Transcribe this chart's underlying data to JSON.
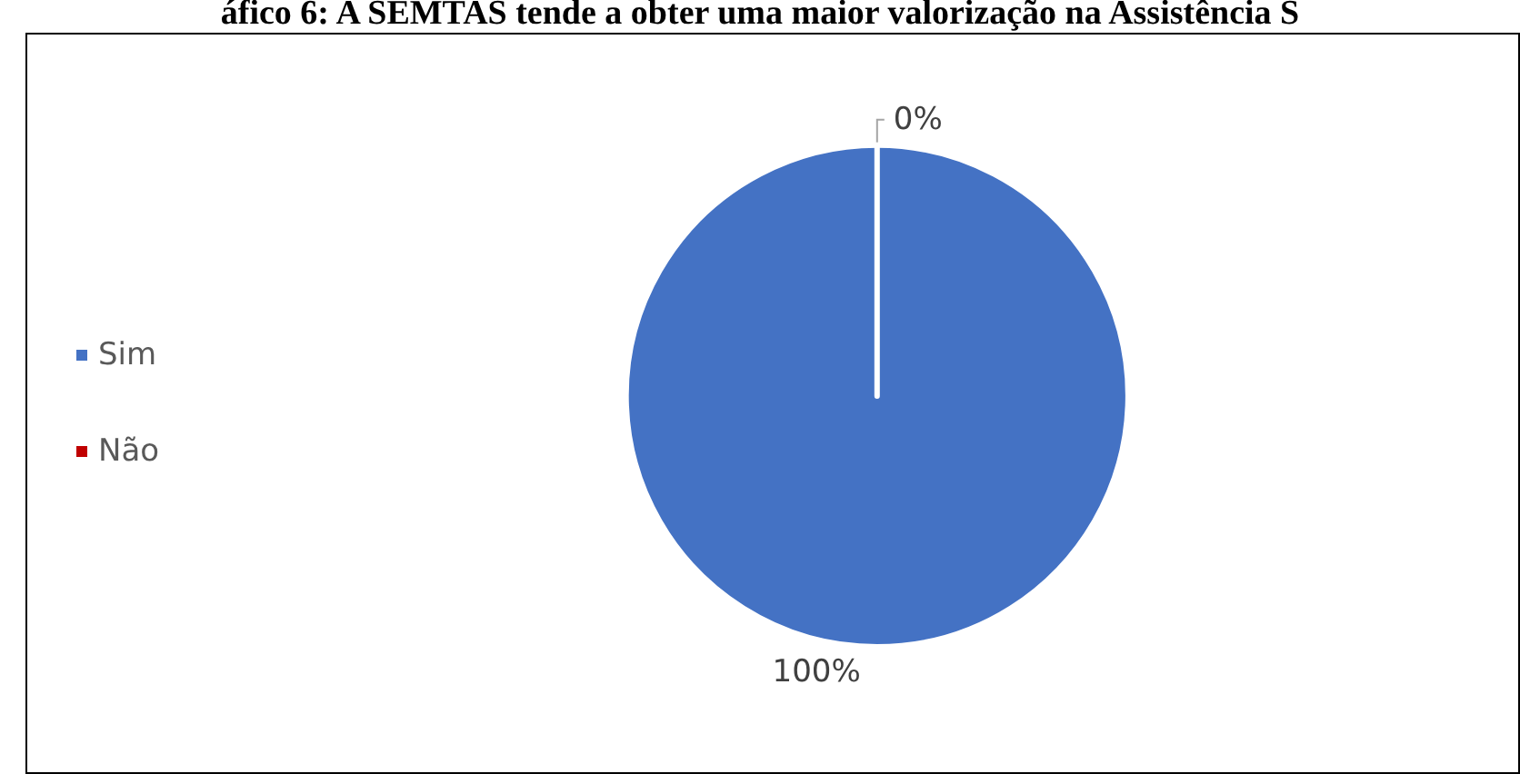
{
  "chart_data": {
    "type": "pie",
    "title": "áfico 6: A SEMTAS tende a obter uma maior valorização na Assistência S",
    "categories": [
      "Sim",
      "Não"
    ],
    "values": [
      100,
      0
    ],
    "colors": [
      "#4472c4",
      "#c00000"
    ],
    "value_labels": [
      "100%",
      "0%"
    ],
    "legend": "left"
  }
}
